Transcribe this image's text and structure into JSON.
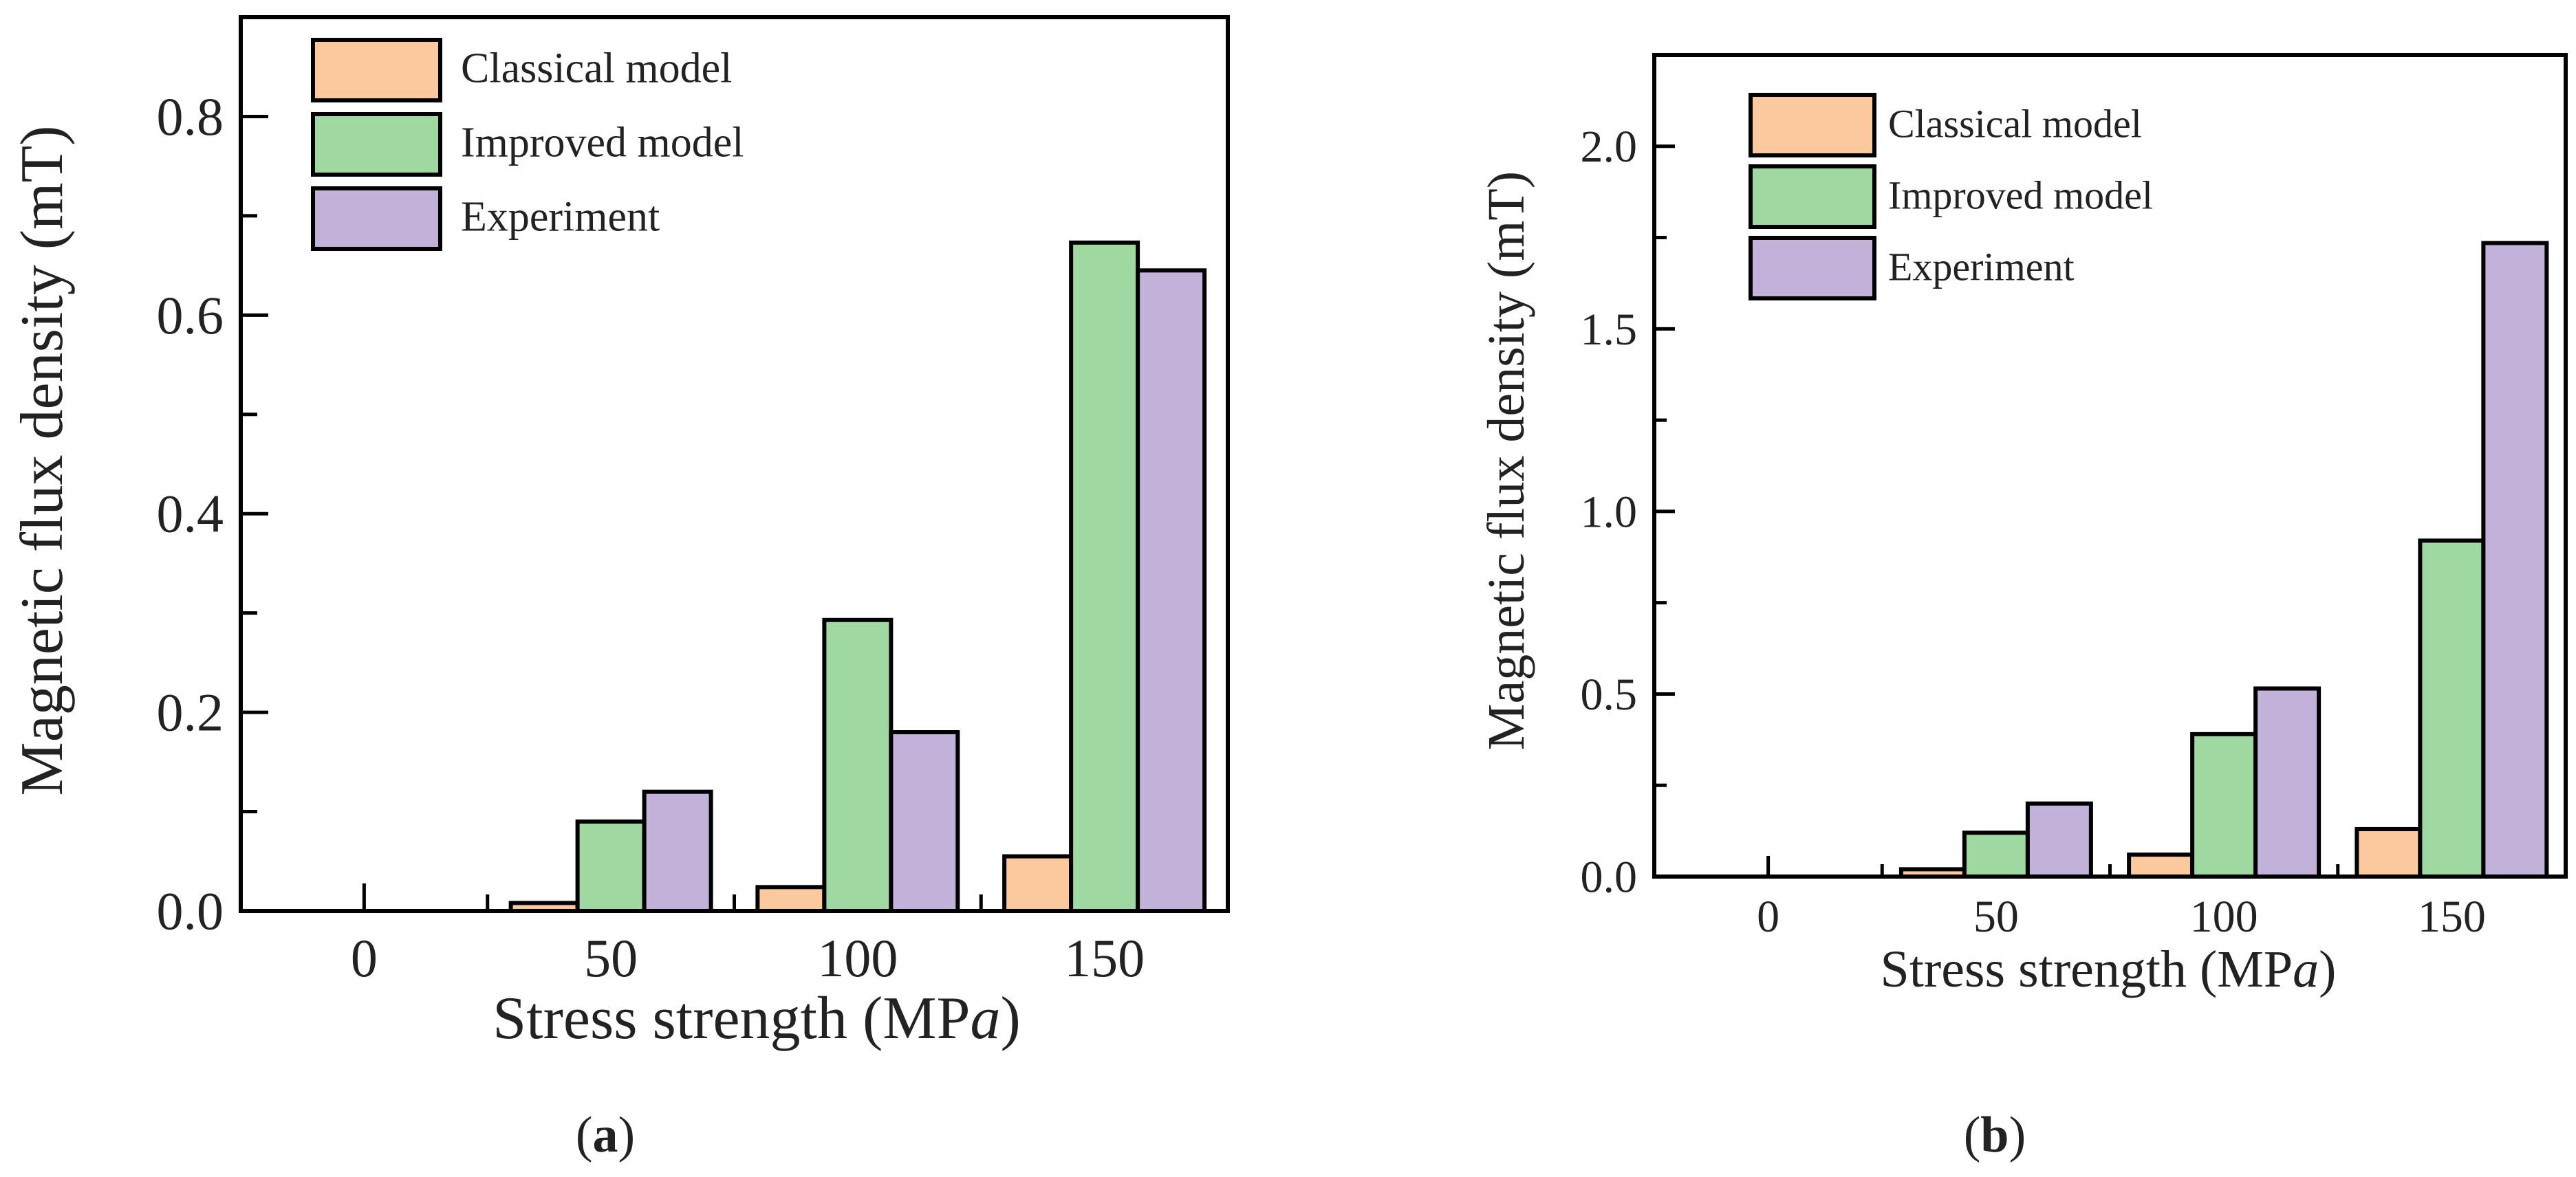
{
  "colors": {
    "classical": "#fbc99d",
    "improved": "#9fd9a1",
    "experiment": "#c2b1d8"
  },
  "chart_data": [
    {
      "panel_label": "(a)",
      "panel_letter": "a",
      "type": "bar",
      "categories": [
        "0",
        "50",
        "100",
        "150"
      ],
      "series": [
        {
          "name": "Classical model",
          "key": "classical",
          "values": [
            0.0,
            0.008,
            0.024,
            0.055
          ]
        },
        {
          "name": "Improved model",
          "key": "improved",
          "values": [
            0.0,
            0.09,
            0.293,
            0.673
          ]
        },
        {
          "name": "Experiment",
          "key": "experiment",
          "values": [
            0.0,
            0.12,
            0.18,
            0.645
          ]
        }
      ],
      "xlabel_main": "Stress strength (MP",
      "xlabel_italic": "a",
      "xlabel_end": ")",
      "ylabel": "Magnetic flux density (mT)",
      "ylim": [
        0,
        0.9
      ],
      "yticks": [
        0.0,
        0.2,
        0.4,
        0.6,
        0.8
      ],
      "ytick_labels": [
        "0.0",
        "0.2",
        "0.4",
        "0.6",
        "0.8"
      ],
      "legend": "top-left"
    },
    {
      "panel_label": "(b)",
      "panel_letter": "b",
      "type": "bar",
      "categories": [
        "0",
        "50",
        "100",
        "150"
      ],
      "series": [
        {
          "name": "Classical model",
          "key": "classical",
          "values": [
            0.0,
            0.02,
            0.06,
            0.13
          ]
        },
        {
          "name": "Improved model",
          "key": "improved",
          "values": [
            0.0,
            0.12,
            0.39,
            0.92
          ]
        },
        {
          "name": "Experiment",
          "key": "experiment",
          "values": [
            0.0,
            0.2,
            0.515,
            1.735
          ]
        }
      ],
      "xlabel_main": "Stress strength (MP",
      "xlabel_italic": "a",
      "xlabel_end": ")",
      "ylabel": "Magnetic flux density (mT)",
      "ylim": [
        0,
        2.25
      ],
      "yticks": [
        0.0,
        0.5,
        1.0,
        1.5,
        2.0
      ],
      "ytick_labels": [
        "0.0",
        "0.5",
        "1.0",
        "1.5",
        "2.0"
      ],
      "legend": "top-left"
    }
  ]
}
